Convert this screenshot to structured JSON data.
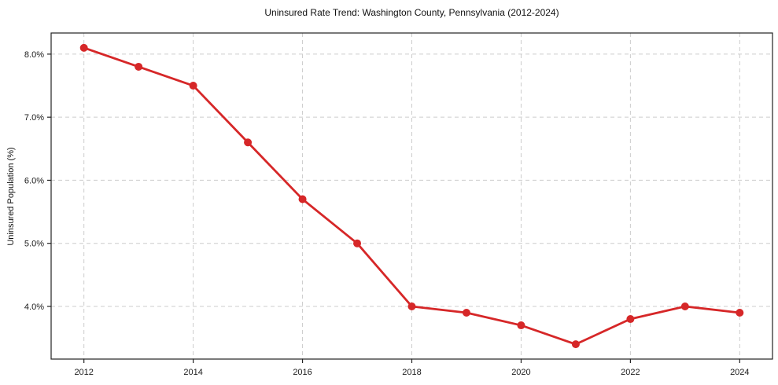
{
  "figure": {
    "title": "Uninsured Rate Trend: Washington County, Pennsylvania (2012-2024)"
  },
  "chart_data": {
    "type": "line",
    "title": "Uninsured Rate Trend: Washington County, Pennsylvania (2012-2024)",
    "xlabel": "",
    "ylabel": "Uninsured Population (%)",
    "x": [
      2012,
      2013,
      2014,
      2015,
      2016,
      2017,
      2018,
      2019,
      2020,
      2021,
      2022,
      2023,
      2024
    ],
    "values": [
      8.1,
      7.8,
      7.5,
      6.6,
      5.7,
      5.0,
      4.0,
      3.9,
      3.7,
      3.4,
      3.8,
      4.0,
      3.9
    ],
    "x_ticks": [
      2012,
      2014,
      2016,
      2018,
      2020,
      2022,
      2024
    ],
    "x_tick_labels": [
      "2012",
      "2014",
      "2016",
      "2018",
      "2020",
      "2022",
      "2024"
    ],
    "y_ticks": [
      4.0,
      5.0,
      6.0,
      7.0,
      8.0
    ],
    "y_tick_labels": [
      "4.0%",
      "5.0%",
      "6.0%",
      "7.0%",
      "8.0%"
    ],
    "xlim": [
      2011.4,
      2024.6
    ],
    "ylim": [
      3.165,
      8.335
    ],
    "grid": true,
    "grid_style": "dashed",
    "grid_color": "#cccccc",
    "spine_color": "#222222",
    "tick_label_color": "#1a1a1a",
    "line_color": "#d62728",
    "marker": "circle",
    "legend_position": "none"
  }
}
